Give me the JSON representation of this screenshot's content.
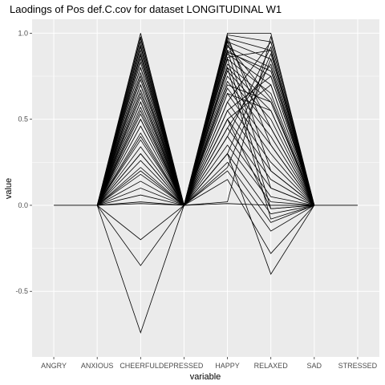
{
  "chart_data": {
    "type": "line",
    "title": "Laodings of Pos def.C.cov for dataset LONGITUDINAL W1",
    "xlabel": "variable",
    "ylabel": "value",
    "categories": [
      "ANGRY",
      "ANXIOUS",
      "CHEERFUL",
      "DEPRESSED",
      "HAPPY",
      "RELAXED",
      "SAD",
      "STRESSED"
    ],
    "x_tick_labels": [
      "ANGRY",
      "ANXIOUS",
      "CHEERFULDEPRESSED",
      "",
      "HAPPY",
      "RELAXED",
      "SAD",
      "STRESSED"
    ],
    "ylim": [
      -0.8,
      1.0
    ],
    "y_ticks": [
      -0.5,
      0.0,
      0.5,
      1.0
    ],
    "y_tick_labels": [
      "-0.5",
      "0.0",
      "0.5",
      "1.0"
    ],
    "grid": true,
    "legend": "none",
    "line_color": "#000000",
    "panel_color": "#ebebeb",
    "grid_color": "#ffffff",
    "series": [
      {
        "values": [
          0,
          0,
          1.0,
          0,
          1.0,
          1.0,
          0,
          0
        ]
      },
      {
        "values": [
          null,
          0,
          0.98,
          0,
          0.99,
          0.95,
          0,
          null
        ]
      },
      {
        "values": [
          null,
          0,
          0.95,
          0,
          0.97,
          0.9,
          0,
          null
        ]
      },
      {
        "values": [
          null,
          0,
          0.92,
          0,
          0.95,
          0.85,
          0,
          null
        ]
      },
      {
        "values": [
          null,
          0,
          0.88,
          0,
          0.92,
          0.8,
          0,
          null
        ]
      },
      {
        "values": [
          null,
          0,
          0.85,
          0,
          0.9,
          0.75,
          0,
          null
        ]
      },
      {
        "values": [
          null,
          0,
          0.8,
          0,
          0.88,
          0.7,
          0,
          null
        ]
      },
      {
        "values": [
          null,
          0,
          0.75,
          0,
          0.85,
          0.65,
          0,
          null
        ]
      },
      {
        "values": [
          null,
          0,
          0.7,
          0,
          0.82,
          0.6,
          0,
          null
        ]
      },
      {
        "values": [
          null,
          0,
          0.65,
          0,
          0.8,
          0.55,
          0,
          null
        ]
      },
      {
        "values": [
          null,
          0,
          0.6,
          0,
          0.78,
          0.5,
          0,
          null
        ]
      },
      {
        "values": [
          null,
          0,
          0.55,
          0,
          0.75,
          0.45,
          0,
          null
        ]
      },
      {
        "values": [
          null,
          0,
          0.5,
          0,
          0.72,
          0.4,
          0,
          null
        ]
      },
      {
        "values": [
          null,
          0,
          0.46,
          0,
          0.68,
          0.35,
          0,
          null
        ]
      },
      {
        "values": [
          null,
          0,
          0.42,
          0,
          0.65,
          0.3,
          0,
          null
        ]
      },
      {
        "values": [
          null,
          0,
          0.38,
          0,
          0.6,
          0.25,
          0,
          null
        ]
      },
      {
        "values": [
          null,
          0,
          0.34,
          0,
          0.55,
          0.2,
          0,
          null
        ]
      },
      {
        "values": [
          null,
          0,
          0.3,
          0,
          0.5,
          0.15,
          0,
          null
        ]
      },
      {
        "values": [
          null,
          0,
          0.26,
          0,
          0.45,
          0.1,
          0,
          null
        ]
      },
      {
        "values": [
          null,
          0,
          0.22,
          0,
          0.4,
          0.05,
          0,
          null
        ]
      },
      {
        "values": [
          null,
          0,
          0.18,
          0,
          0.35,
          0.02,
          0,
          null
        ]
      },
      {
        "values": [
          null,
          0,
          0.14,
          0,
          0.3,
          -0.05,
          0,
          null
        ]
      },
      {
        "values": [
          null,
          0,
          0.1,
          0,
          0.25,
          -0.1,
          0,
          null
        ]
      },
      {
        "values": [
          null,
          0,
          0.06,
          0,
          0.2,
          -0.15,
          0,
          null
        ]
      },
      {
        "values": [
          null,
          0,
          0.02,
          0,
          0.02,
          0.98,
          0,
          null
        ]
      },
      {
        "values": [
          null,
          0,
          0.9,
          0,
          0.6,
          0.95,
          0,
          null
        ]
      },
      {
        "values": [
          null,
          0,
          0.8,
          0,
          0.4,
          0.92,
          0,
          null
        ]
      },
      {
        "values": [
          null,
          0,
          0.7,
          0,
          0.3,
          0.88,
          0,
          null
        ]
      },
      {
        "values": [
          null,
          0,
          0.6,
          0,
          0.22,
          0.85,
          0,
          null
        ]
      },
      {
        "values": [
          null,
          0,
          0.5,
          0,
          0.95,
          0.2,
          0,
          null
        ]
      },
      {
        "values": [
          null,
          0,
          0.4,
          0,
          0.9,
          0.1,
          0,
          null
        ]
      },
      {
        "values": [
          null,
          0,
          0.3,
          0,
          0.85,
          -0.02,
          0,
          null
        ]
      },
      {
        "values": [
          null,
          0,
          0.2,
          0,
          0.8,
          -0.08,
          0,
          null
        ]
      },
      {
        "values": [
          null,
          0,
          0.97,
          0,
          0.7,
          0.6,
          0,
          null
        ]
      },
      {
        "values": [
          null,
          0,
          0.93,
          0,
          0.65,
          0.55,
          0,
          null
        ]
      },
      {
        "values": [
          null,
          0,
          0.87,
          0,
          0.55,
          0.75,
          0,
          null
        ]
      },
      {
        "values": [
          null,
          0,
          0.83,
          0,
          0.5,
          0.7,
          0,
          null
        ]
      },
      {
        "values": [
          null,
          0,
          0.77,
          0,
          0.45,
          0.82,
          0,
          null
        ]
      },
      {
        "values": [
          null,
          0,
          0.73,
          0,
          0.98,
          0.35,
          0,
          null
        ]
      },
      {
        "values": [
          null,
          0,
          0.67,
          0,
          0.96,
          0.45,
          0,
          null
        ]
      },
      {
        "values": [
          null,
          0,
          0.63,
          0,
          0.93,
          0.62,
          0,
          null
        ]
      },
      {
        "values": [
          null,
          0,
          0.57,
          0,
          0.89,
          0.78,
          0,
          null
        ]
      },
      {
        "values": [
          null,
          0,
          0.53,
          0,
          0.86,
          0.9,
          0,
          null
        ]
      },
      {
        "values": [
          null,
          0,
          0.01,
          0,
          0.01,
          0.0,
          0,
          null
        ]
      },
      {
        "values": [
          null,
          0,
          -0.2,
          0,
          0.15,
          -0.28,
          0,
          null
        ]
      },
      {
        "values": [
          null,
          0,
          -0.35,
          0,
          0.3,
          -0.4,
          0,
          null
        ]
      },
      {
        "values": [
          null,
          0,
          -0.74,
          0,
          0.5,
          -0.02,
          0,
          null
        ]
      }
    ]
  }
}
